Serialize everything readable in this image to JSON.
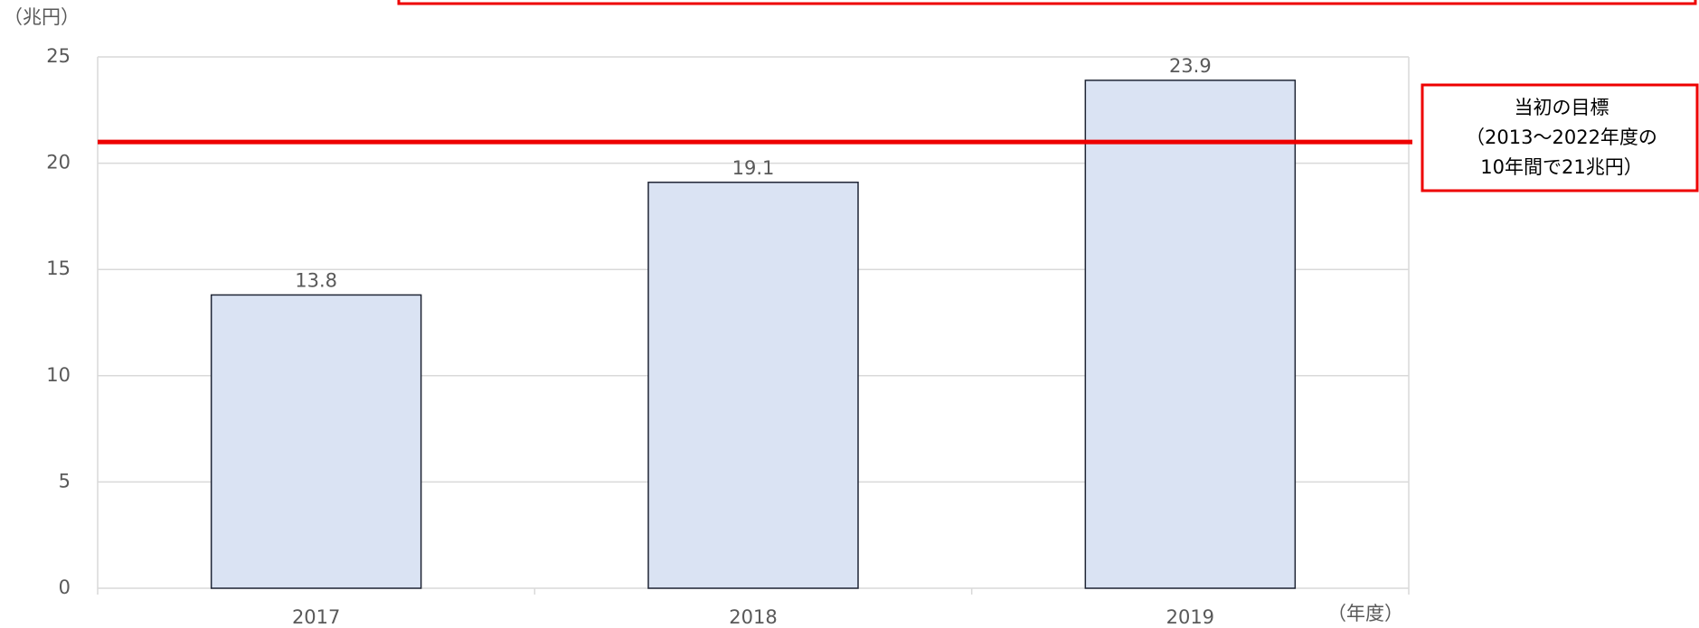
{
  "chart_data": {
    "type": "bar",
    "y_unit": "（兆円）",
    "x_unit": "（年度）",
    "categories": [
      "2017",
      "2018",
      "2019"
    ],
    "values": [
      13.8,
      19.1,
      23.9
    ],
    "color": "#dae3f3",
    "edge_color": "#1f2535",
    "ylim": [
      0,
      25
    ],
    "yticks": [
      0,
      5,
      10,
      15,
      20,
      25
    ],
    "grid": true,
    "target_line": {
      "value": 21,
      "color": "#ee0000"
    },
    "annotation": [
      "当初の目標",
      "（2013〜2022年度の",
      "10年間で21兆円）"
    ]
  }
}
